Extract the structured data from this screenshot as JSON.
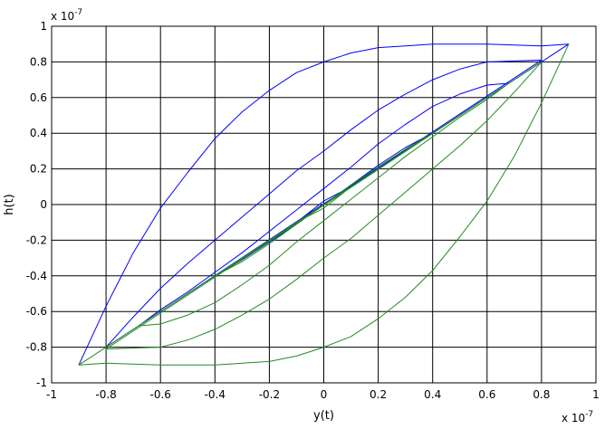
{
  "chart_data": {
    "type": "line",
    "title": "",
    "xlabel": "y(t)",
    "ylabel": "h(t)",
    "x_exponent_label": "x 10",
    "x_exponent_power": "-7",
    "y_exponent_label": "x 10",
    "y_exponent_power": "-7",
    "xlim": [
      -1,
      1
    ],
    "ylim": [
      -1,
      1
    ],
    "x_ticks": [
      "-1",
      "-0.8",
      "-0.6",
      "-0.4",
      "-0.2",
      "0",
      "0.2",
      "0.4",
      "0.6",
      "0.8",
      "1"
    ],
    "y_ticks": [
      "-1",
      "-0.8",
      "-0.6",
      "-0.4",
      "-0.2",
      "0",
      "0.2",
      "0.4",
      "0.6",
      "0.8",
      "1"
    ],
    "grid": true,
    "series": [
      {
        "color": "#0000ff",
        "points": [
          [
            -0.9,
            -0.9
          ],
          [
            -0.8,
            -0.57
          ],
          [
            -0.7,
            -0.27
          ],
          [
            -0.6,
            -0.02
          ],
          [
            -0.5,
            0.18
          ],
          [
            -0.4,
            0.37
          ],
          [
            -0.3,
            0.52
          ],
          [
            -0.2,
            0.64
          ],
          [
            -0.1,
            0.74
          ],
          [
            0.0,
            0.8
          ],
          [
            0.1,
            0.85
          ],
          [
            0.2,
            0.88
          ],
          [
            0.3,
            0.89
          ],
          [
            0.4,
            0.9
          ],
          [
            0.6,
            0.9
          ],
          [
            0.8,
            0.89
          ],
          [
            0.9,
            0.9
          ],
          [
            -0.8,
            -0.8
          ],
          [
            -0.7,
            -0.63
          ],
          [
            -0.6,
            -0.47
          ],
          [
            -0.5,
            -0.33
          ],
          [
            -0.4,
            -0.2
          ],
          [
            -0.3,
            -0.07
          ],
          [
            -0.2,
            0.06
          ],
          [
            -0.1,
            0.19
          ],
          [
            0.0,
            0.3
          ],
          [
            0.1,
            0.42
          ],
          [
            0.2,
            0.53
          ],
          [
            0.3,
            0.62
          ],
          [
            0.4,
            0.7
          ],
          [
            0.5,
            0.76
          ],
          [
            0.6,
            0.8
          ],
          [
            0.8,
            0.81
          ],
          [
            -0.68,
            -0.68
          ],
          [
            -0.6,
            -0.59
          ],
          [
            -0.5,
            -0.49
          ],
          [
            -0.4,
            -0.38
          ],
          [
            -0.3,
            -0.27
          ],
          [
            -0.2,
            -0.15
          ],
          [
            -0.1,
            -0.03
          ],
          [
            0.0,
            0.09
          ],
          [
            0.1,
            0.21
          ],
          [
            0.2,
            0.34
          ],
          [
            0.3,
            0.45
          ],
          [
            0.4,
            0.55
          ],
          [
            0.5,
            0.62
          ],
          [
            0.6,
            0.67
          ],
          [
            0.68,
            0.68
          ],
          [
            -0.4,
            -0.4
          ],
          [
            -0.3,
            -0.31
          ],
          [
            -0.2,
            -0.21
          ],
          [
            -0.1,
            -0.11
          ],
          [
            0.0,
            0.0
          ],
          [
            0.1,
            0.11
          ],
          [
            0.2,
            0.22
          ],
          [
            0.3,
            0.32
          ],
          [
            0.4,
            0.4
          ],
          [
            -0.1,
            -0.1
          ],
          [
            0.0,
            0.02
          ],
          [
            0.1,
            0.1
          ]
        ]
      },
      {
        "color": "#228b22",
        "points": [
          [
            0.9,
            0.9
          ],
          [
            0.8,
            0.57
          ],
          [
            0.7,
            0.27
          ],
          [
            0.6,
            0.02
          ],
          [
            0.5,
            -0.18
          ],
          [
            0.4,
            -0.37
          ],
          [
            0.3,
            -0.52
          ],
          [
            0.2,
            -0.64
          ],
          [
            0.1,
            -0.74
          ],
          [
            0.0,
            -0.8
          ],
          [
            -0.1,
            -0.85
          ],
          [
            -0.2,
            -0.88
          ],
          [
            -0.3,
            -0.89
          ],
          [
            -0.4,
            -0.9
          ],
          [
            -0.6,
            -0.9
          ],
          [
            -0.8,
            -0.89
          ],
          [
            -0.9,
            -0.9
          ],
          [
            0.8,
            0.8
          ],
          [
            0.7,
            0.63
          ],
          [
            0.6,
            0.47
          ],
          [
            0.5,
            0.33
          ],
          [
            0.4,
            0.2
          ],
          [
            0.3,
            0.07
          ],
          [
            0.2,
            -0.06
          ],
          [
            0.1,
            -0.19
          ],
          [
            0.0,
            -0.3
          ],
          [
            -0.1,
            -0.42
          ],
          [
            -0.2,
            -0.53
          ],
          [
            -0.3,
            -0.62
          ],
          [
            -0.4,
            -0.7
          ],
          [
            -0.5,
            -0.76
          ],
          [
            -0.6,
            -0.8
          ],
          [
            -0.8,
            -0.81
          ],
          [
            0.68,
            0.68
          ],
          [
            0.6,
            0.59
          ],
          [
            0.5,
            0.49
          ],
          [
            0.4,
            0.38
          ],
          [
            0.3,
            0.27
          ],
          [
            0.2,
            0.15
          ],
          [
            0.1,
            0.03
          ],
          [
            0.0,
            -0.09
          ],
          [
            -0.1,
            -0.21
          ],
          [
            -0.2,
            -0.34
          ],
          [
            -0.3,
            -0.45
          ],
          [
            -0.4,
            -0.55
          ],
          [
            -0.5,
            -0.62
          ],
          [
            -0.6,
            -0.67
          ],
          [
            -0.68,
            -0.68
          ],
          [
            0.4,
            0.4
          ],
          [
            0.3,
            0.31
          ],
          [
            0.2,
            0.21
          ],
          [
            0.1,
            0.11
          ],
          [
            0.0,
            0.0
          ],
          [
            -0.1,
            -0.11
          ],
          [
            -0.2,
            -0.22
          ],
          [
            -0.3,
            -0.32
          ],
          [
            -0.4,
            -0.4
          ],
          [
            0.1,
            0.1
          ],
          [
            0.0,
            -0.02
          ],
          [
            -0.1,
            -0.1
          ]
        ]
      }
    ]
  }
}
